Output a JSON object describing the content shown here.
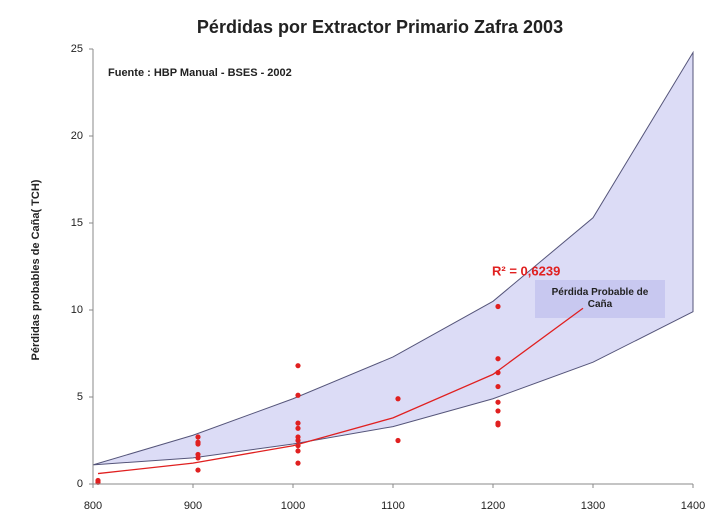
{
  "chart_data": {
    "type": "scatter",
    "title": "Pérdidas por Extractor Primario Zafra 2003",
    "y_label": "Pérdidas  probables de Caña( TCH)",
    "annotations": {
      "source": "Fuente : HBP Manual - BSES - 2002",
      "r2": "R² = 0,6239"
    },
    "xlim": [
      800,
      1400
    ],
    "ylim": [
      0,
      25
    ],
    "xticks": [
      800,
      900,
      1000,
      1100,
      1200,
      1300,
      1400
    ],
    "yticks": [
      0,
      5,
      10,
      15,
      20,
      25
    ],
    "grid": false,
    "series": [
      {
        "type": "band",
        "name": "Pérdida Probable de Caña",
        "color": "#dcdcf6",
        "stroke": "#55557a",
        "x": [
          800,
          900,
          1000,
          1100,
          1200,
          1300,
          1400
        ],
        "upper": [
          1.1,
          2.8,
          4.9,
          7.3,
          10.5,
          15.3,
          24.8
        ],
        "lower": [
          1.1,
          1.5,
          2.3,
          3.3,
          4.9,
          7.0,
          9.9
        ]
      },
      {
        "type": "points",
        "color": "#e02020",
        "x": [
          805,
          805,
          905,
          905,
          905,
          905,
          905,
          905,
          1005,
          1005,
          1005,
          1005,
          1005,
          1005,
          1005,
          1005,
          1005,
          1105,
          1105,
          1205,
          1205,
          1205,
          1205,
          1205,
          1205,
          1205,
          1205
        ],
        "values": [
          0.2,
          0.1,
          2.7,
          2.4,
          2.3,
          1.7,
          1.5,
          0.8,
          6.8,
          5.1,
          3.5,
          3.2,
          2.7,
          2.5,
          2.2,
          1.9,
          1.2,
          4.9,
          2.5,
          10.2,
          7.2,
          6.4,
          5.6,
          4.7,
          4.2,
          3.5,
          3.4
        ]
      },
      {
        "type": "line",
        "color": "#e02020",
        "x": [
          805,
          900,
          1000,
          1100,
          1200,
          1290
        ],
        "values": [
          0.6,
          1.2,
          2.2,
          3.8,
          6.3,
          10.1
        ]
      }
    ]
  }
}
